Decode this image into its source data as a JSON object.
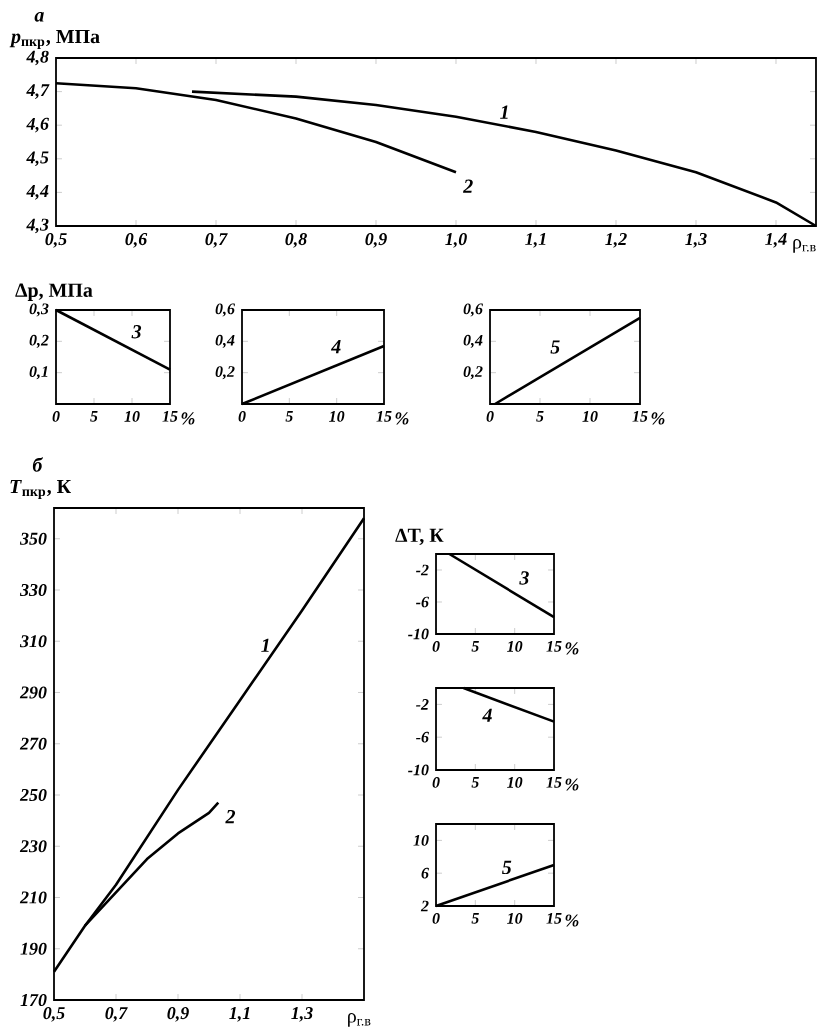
{
  "chart_data": [
    {
      "type": "line",
      "title": "а",
      "xlabel": "ρ$_{г.в}$",
      "ylabel": "*p*$_{пкр}$, МПа",
      "xlim": [
        0.5,
        1.45
      ],
      "ylim": [
        4.3,
        4.8
      ],
      "xticks": [
        {
          "value": 0.5,
          "label": "0,5"
        },
        {
          "value": 0.6,
          "label": "0,6"
        },
        {
          "value": 0.7,
          "label": "0,7"
        },
        {
          "value": 0.8,
          "label": "0,8"
        },
        {
          "value": 0.9,
          "label": "0,9"
        },
        {
          "value": 1.0,
          "label": "1,0"
        },
        {
          "value": 1.1,
          "label": "1,1"
        },
        {
          "value": 1.2,
          "label": "1,2"
        },
        {
          "value": 1.3,
          "label": "1,3"
        },
        {
          "value": 1.4,
          "label": "1,4"
        }
      ],
      "yticks": [
        {
          "value": 4.3,
          "label": "4,3"
        },
        {
          "value": 4.4,
          "label": "4,4"
        },
        {
          "value": 4.5,
          "label": "4,5"
        },
        {
          "value": 4.6,
          "label": "4,6"
        },
        {
          "value": 4.7,
          "label": "4,7"
        },
        {
          "value": 4.8,
          "label": "4,8"
        }
      ],
      "series": [
        {
          "name": "1",
          "color": "#000000",
          "x": [
            0.67,
            0.8,
            0.9,
            1.0,
            1.1,
            1.2,
            1.3,
            1.4,
            1.45
          ],
          "values": [
            4.7,
            4.685,
            4.66,
            4.625,
            4.58,
            4.525,
            4.46,
            4.37,
            4.3
          ]
        },
        {
          "name": "2",
          "color": "#000000",
          "x": [
            0.5,
            0.6,
            0.7,
            0.8,
            0.9,
            1.0
          ],
          "values": [
            4.725,
            4.71,
            4.675,
            4.62,
            4.55,
            4.46
          ]
        }
      ]
    },
    {
      "type": "line",
      "xlabel": "%",
      "ylabel": "Δp, МПа",
      "xlim": [
        0,
        15
      ],
      "ylim": [
        0,
        0.3
      ],
      "xticks": [
        0,
        5,
        10,
        15
      ],
      "yticks": [
        {
          "value": 0.1,
          "label": "0,1"
        },
        {
          "value": 0.2,
          "label": "0,2"
        },
        {
          "value": 0.3,
          "label": "0,3"
        }
      ],
      "series": [
        {
          "name": "3",
          "color": "#000000",
          "x": [
            0,
            15
          ],
          "values": [
            0.3,
            0.11
          ]
        }
      ]
    },
    {
      "type": "line",
      "xlabel": "%",
      "xlim": [
        0,
        15
      ],
      "ylim": [
        0,
        0.6
      ],
      "xticks": [
        0,
        5,
        10,
        15
      ],
      "yticks": [
        {
          "value": 0.2,
          "label": "0,2"
        },
        {
          "value": 0.4,
          "label": "0,4"
        },
        {
          "value": 0.6,
          "label": "0,6"
        }
      ],
      "series": [
        {
          "name": "4",
          "color": "#000000",
          "x": [
            0,
            15
          ],
          "values": [
            0,
            0.37
          ]
        }
      ]
    },
    {
      "type": "line",
      "xlabel": "%",
      "xlim": [
        0,
        15
      ],
      "ylim": [
        0,
        0.6
      ],
      "xticks": [
        0,
        5,
        10,
        15
      ],
      "yticks": [
        {
          "value": 0.2,
          "label": "0,2"
        },
        {
          "value": 0.4,
          "label": "0,4"
        },
        {
          "value": 0.6,
          "label": "0,6"
        }
      ],
      "series": [
        {
          "name": "5",
          "color": "#000000",
          "x": [
            0.5,
            15
          ],
          "values": [
            0,
            0.55
          ]
        }
      ]
    },
    {
      "type": "line",
      "title": "б",
      "xlabel": "ρ$_{г.в}$",
      "ylabel": "*T*$_{пкр}$, К",
      "xlim": [
        0.5,
        1.5
      ],
      "ylim": [
        170,
        362
      ],
      "xticks": [
        {
          "value": 0.5,
          "label": "0,5"
        },
        {
          "value": 0.7,
          "label": "0,7"
        },
        {
          "value": 0.9,
          "label": "0,9"
        },
        {
          "value": 1.1,
          "label": "1,1"
        },
        {
          "value": 1.3,
          "label": "1,3"
        }
      ],
      "yticks": [
        170,
        190,
        210,
        230,
        250,
        270,
        290,
        310,
        330,
        350
      ],
      "series": [
        {
          "name": "1",
          "color": "#000000",
          "x": [
            0.5,
            0.6,
            0.7,
            0.9,
            1.1,
            1.3,
            1.5
          ],
          "values": [
            181,
            199,
            215,
            252,
            287,
            322,
            358
          ]
        },
        {
          "name": "2",
          "color": "#000000",
          "x": [
            0.6,
            0.7,
            0.8,
            0.9,
            1.0,
            1.03
          ],
          "values": [
            199,
            212,
            225,
            235,
            243,
            247
          ]
        }
      ]
    },
    {
      "type": "line",
      "xlabel": "%",
      "ylabel": "ΔT, К",
      "xlim": [
        0,
        15
      ],
      "ylim": [
        -10,
        0
      ],
      "xticks": [
        0,
        5,
        10,
        15
      ],
      "yticks": [
        -10,
        -6,
        -2
      ],
      "series": [
        {
          "name": "3",
          "color": "#000000",
          "x": [
            1.7,
            15
          ],
          "values": [
            0,
            -7.9
          ]
        }
      ]
    },
    {
      "type": "line",
      "xlabel": "%",
      "xlim": [
        0,
        15
      ],
      "ylim": [
        -10,
        0
      ],
      "xticks": [
        0,
        5,
        10,
        15
      ],
      "yticks": [
        -10,
        -6,
        -2
      ],
      "series": [
        {
          "name": "4",
          "color": "#000000",
          "x": [
            3.5,
            15
          ],
          "values": [
            0,
            -4.1
          ]
        }
      ]
    },
    {
      "type": "line",
      "xlabel": "%",
      "xlim": [
        0,
        15
      ],
      "ylim": [
        2,
        12
      ],
      "xticks": [
        0,
        5,
        10,
        15
      ],
      "yticks": [
        2,
        6,
        10
      ],
      "series": [
        {
          "name": "5",
          "color": "#000000",
          "x": [
            0,
            15
          ],
          "values": [
            2,
            7
          ]
        }
      ]
    }
  ]
}
